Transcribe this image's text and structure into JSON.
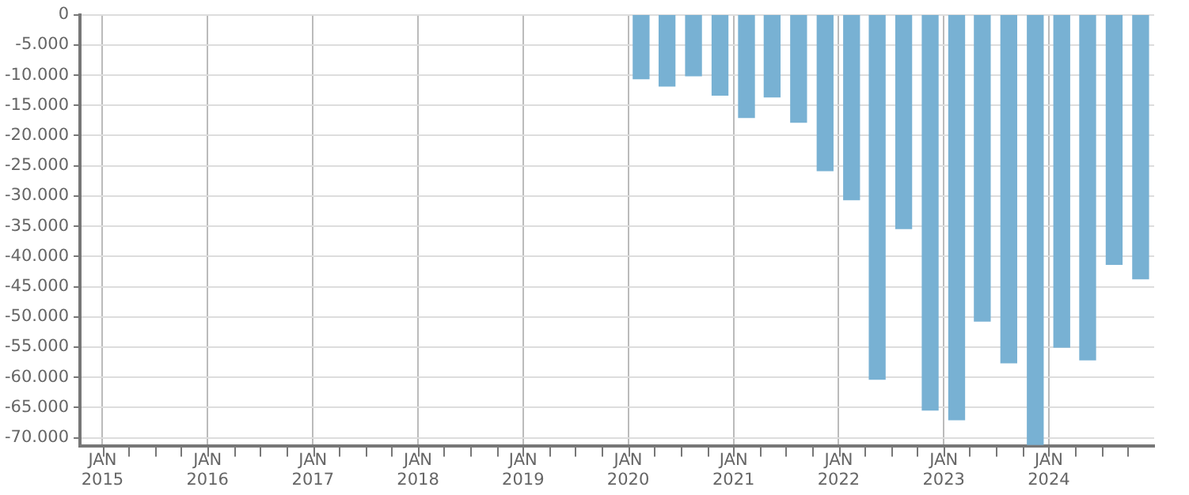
{
  "chart_data": {
    "type": "bar",
    "x": [
      "2020-02-15",
      "2020-05-15",
      "2020-08-15",
      "2020-11-15",
      "2021-02-15",
      "2021-05-15",
      "2021-08-15",
      "2021-11-15",
      "2022-02-15",
      "2022-05-15",
      "2022-08-15",
      "2022-11-15",
      "2023-02-15",
      "2023-05-15",
      "2023-08-15",
      "2023-11-15",
      "2024-02-15",
      "2024-05-15",
      "2024-08-15",
      "2024-11-15"
    ],
    "values": [
      -10600,
      -11800,
      -10100,
      -13300,
      -17000,
      -13600,
      -17800,
      -25800,
      -30600,
      -60300,
      -35400,
      -65400,
      -67000,
      -50700,
      -57600,
      -71100,
      -55000,
      -57100,
      -41300,
      -43700
    ],
    "color": "#78b1d3",
    "xlim": [
      "2014-10-15",
      "2025-01-01"
    ],
    "xticks": [
      {
        "value": "2015-01-01",
        "label": "JAN 2015"
      },
      {
        "value": "2015-04-01",
        "label": null
      },
      {
        "value": "2015-07-01",
        "label": null
      },
      {
        "value": "2015-10-01",
        "label": null
      },
      {
        "value": "2016-01-01",
        "label": "JAN 2016"
      },
      {
        "value": "2016-04-01",
        "label": null
      },
      {
        "value": "2016-07-01",
        "label": null
      },
      {
        "value": "2016-10-01",
        "label": null
      },
      {
        "value": "2017-01-01",
        "label": "JAN 2017"
      },
      {
        "value": "2017-04-01",
        "label": null
      },
      {
        "value": "2017-07-01",
        "label": null
      },
      {
        "value": "2017-10-01",
        "label": null
      },
      {
        "value": "2018-01-01",
        "label": "JAN 2018"
      },
      {
        "value": "2018-04-01",
        "label": null
      },
      {
        "value": "2018-07-01",
        "label": null
      },
      {
        "value": "2018-10-01",
        "label": null
      },
      {
        "value": "2019-01-01",
        "label": "JAN 2019"
      },
      {
        "value": "2019-04-01",
        "label": null
      },
      {
        "value": "2019-07-01",
        "label": null
      },
      {
        "value": "2019-10-01",
        "label": null
      },
      {
        "value": "2020-01-01",
        "label": "JAN 2020"
      },
      {
        "value": "2020-04-01",
        "label": null
      },
      {
        "value": "2020-07-01",
        "label": null
      },
      {
        "value": "2020-10-01",
        "label": null
      },
      {
        "value": "2021-01-01",
        "label": "JAN 2021"
      },
      {
        "value": "2021-04-01",
        "label": null
      },
      {
        "value": "2021-07-01",
        "label": null
      },
      {
        "value": "2021-10-01",
        "label": null
      },
      {
        "value": "2022-01-01",
        "label": "JAN 2022"
      },
      {
        "value": "2022-04-01",
        "label": null
      },
      {
        "value": "2022-07-01",
        "label": null
      },
      {
        "value": "2022-10-01",
        "label": null
      },
      {
        "value": "2023-01-01",
        "label": "JAN 2023"
      },
      {
        "value": "2023-04-01",
        "label": null
      },
      {
        "value": "2023-07-01",
        "label": null
      },
      {
        "value": "2023-10-01",
        "label": null
      },
      {
        "value": "2024-01-01",
        "label": "JAN 2024"
      },
      {
        "value": "2024-04-01",
        "label": null
      },
      {
        "value": "2024-07-01",
        "label": null
      },
      {
        "value": "2024-10-01",
        "label": null
      }
    ],
    "ylim": [
      -71300,
      0
    ],
    "yticks": [
      {
        "value": 0,
        "label": "0"
      },
      {
        "value": -5000,
        "label": "-5.000"
      },
      {
        "value": -10000,
        "label": "-10.000"
      },
      {
        "value": -15000,
        "label": "-15.000"
      },
      {
        "value": -20000,
        "label": "-20.000"
      },
      {
        "value": -25000,
        "label": "-25.000"
      },
      {
        "value": -30000,
        "label": "-30.000"
      },
      {
        "value": -35000,
        "label": "-35.000"
      },
      {
        "value": -40000,
        "label": "-40.000"
      },
      {
        "value": -45000,
        "label": "-45.000"
      },
      {
        "value": -50000,
        "label": "-50.000"
      },
      {
        "value": -55000,
        "label": "-55.000"
      },
      {
        "value": -60000,
        "label": "-60.000"
      },
      {
        "value": -65000,
        "label": "-65.000"
      },
      {
        "value": -70000,
        "label": "-70.000"
      }
    ],
    "grid": true,
    "legend": false
  }
}
